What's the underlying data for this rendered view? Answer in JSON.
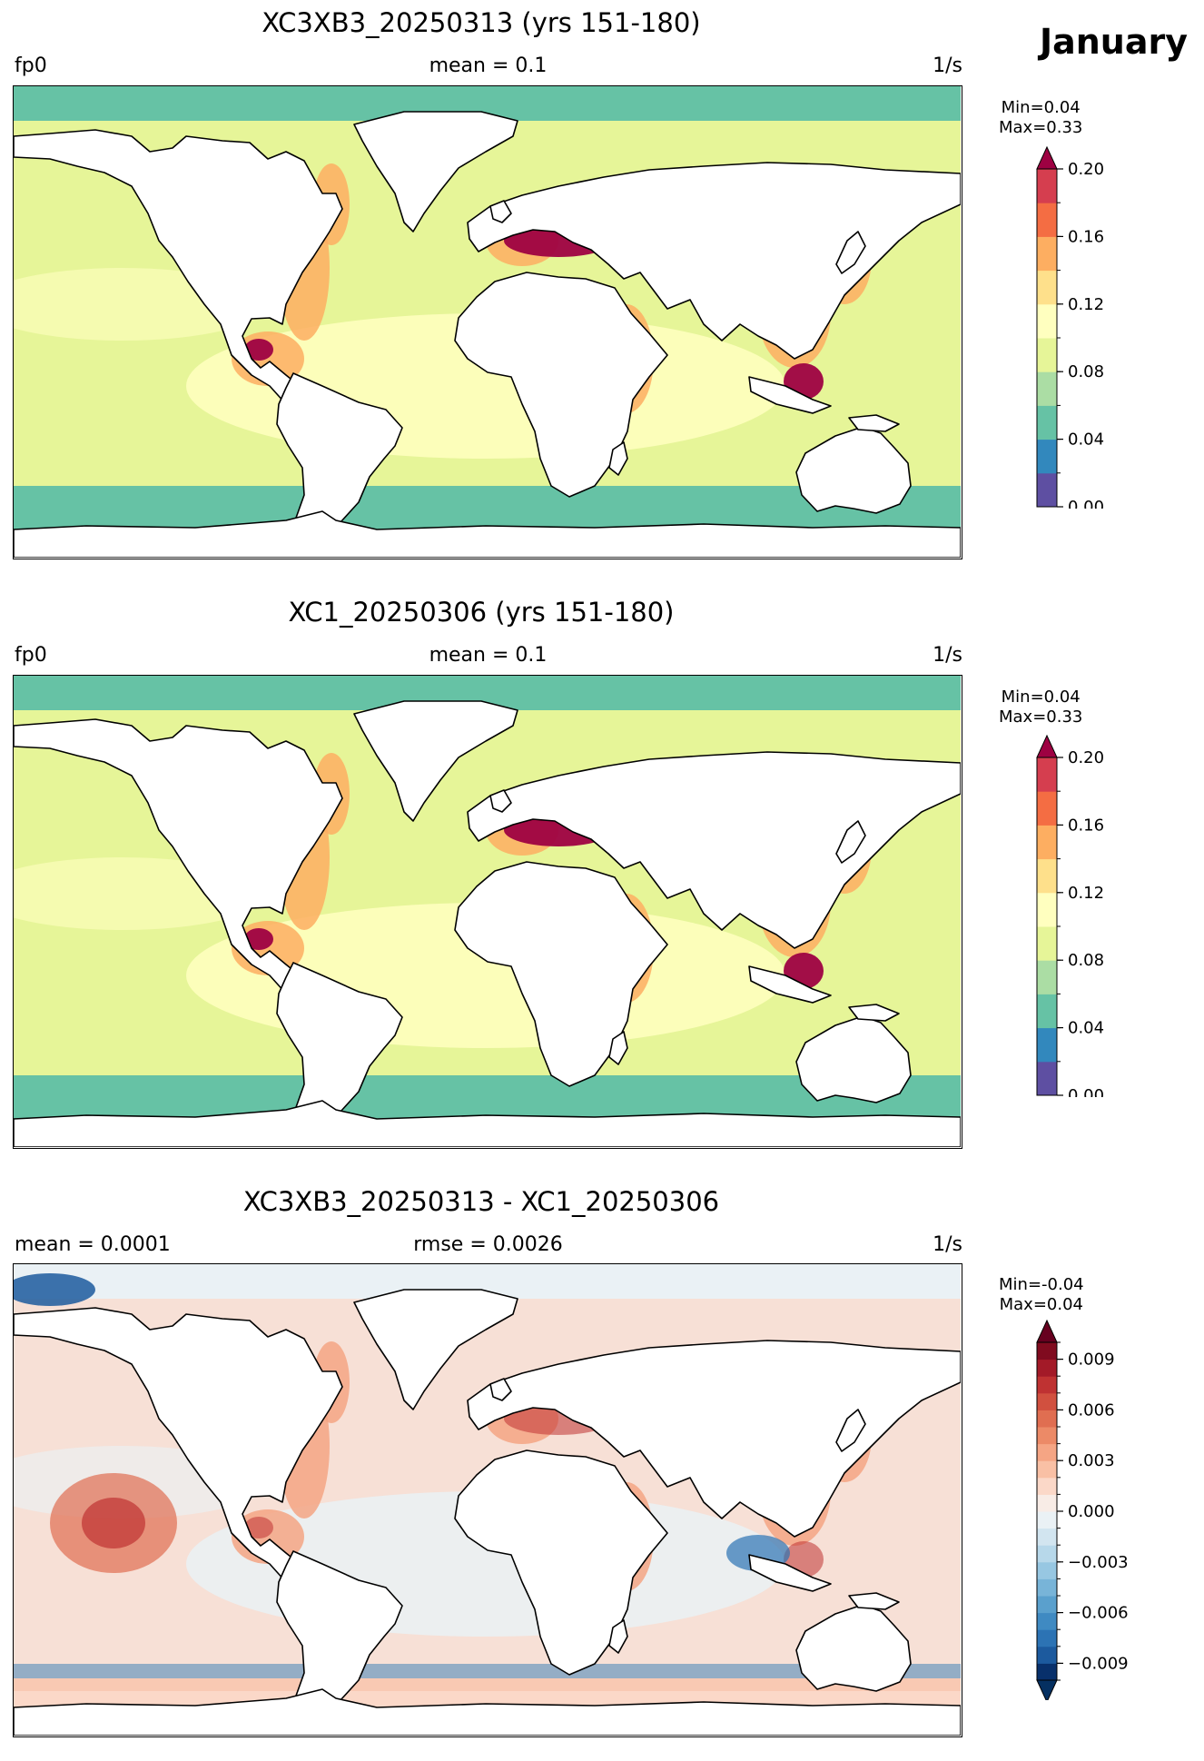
{
  "month": "January",
  "panels": [
    {
      "title": "XC3XB3_20250313 (yrs 151-180)",
      "left": "fp0",
      "center": "mean = 0.1",
      "right": "1/s",
      "min_label": "Min=0.04",
      "max_label": "Max=0.33",
      "colorbar": {
        "levels": [
          0.0,
          0.02,
          0.04,
          0.06,
          0.08,
          0.1,
          0.12,
          0.14,
          0.16,
          0.18,
          0.2
        ],
        "colors": [
          "#5e4fa2",
          "#3288bd",
          "#66c2a5",
          "#abdda4",
          "#e6f598",
          "#ffffbf",
          "#fee08b",
          "#fdae61",
          "#f46d43",
          "#d53e4f"
        ],
        "extend_color": "#9e0142",
        "extend": "max",
        "tick_labels": [
          "0.20",
          "0.16",
          "0.12",
          "0.08",
          "0.04",
          "0.00"
        ]
      },
      "ocean": {
        "base": "#e6f598",
        "north": "#66c2a5",
        "south": "#66c2a5",
        "tropic": "#ffffbf",
        "coast": "#fdae61",
        "hot": "#9e0142"
      }
    },
    {
      "title": "XC1_20250306 (yrs 151-180)",
      "left": "fp0",
      "center": "mean = 0.1",
      "right": "1/s",
      "min_label": "Min=0.04",
      "max_label": "Max=0.33",
      "colorbar": {
        "levels": [
          0.0,
          0.02,
          0.04,
          0.06,
          0.08,
          0.1,
          0.12,
          0.14,
          0.16,
          0.18,
          0.2
        ],
        "colors": [
          "#5e4fa2",
          "#3288bd",
          "#66c2a5",
          "#abdda4",
          "#e6f598",
          "#ffffbf",
          "#fee08b",
          "#fdae61",
          "#f46d43",
          "#d53e4f"
        ],
        "extend_color": "#9e0142",
        "extend": "max",
        "tick_labels": [
          "0.20",
          "0.16",
          "0.12",
          "0.08",
          "0.04",
          "0.00"
        ]
      },
      "ocean": {
        "base": "#e6f598",
        "north": "#66c2a5",
        "south": "#66c2a5",
        "tropic": "#ffffbf",
        "coast": "#fdae61",
        "hot": "#9e0142"
      }
    },
    {
      "title": "XC3XB3_20250313 - XC1_20250306",
      "left": "mean = 0.0001",
      "center": "rmse = 0.0026",
      "right": "1/s",
      "min_label": "Min=-0.04",
      "max_label": "Max=0.04",
      "colorbar": {
        "levels": [
          -0.01,
          -0.009,
          -0.008,
          -0.007,
          -0.006,
          -0.005,
          -0.004,
          -0.003,
          -0.002,
          -0.001,
          0.0,
          0.001,
          0.002,
          0.003,
          0.004,
          0.005,
          0.006,
          0.007,
          0.008,
          0.009,
          0.01
        ],
        "colors": [
          "#08306b",
          "#1c5a9e",
          "#2c73b4",
          "#3f8ac2",
          "#5aa0cd",
          "#78b4d8",
          "#97c7e2",
          "#b7d8ea",
          "#d2e5f0",
          "#eaf1f5",
          "#f8ece6",
          "#fbd8c8",
          "#f9c0a5",
          "#f5a584",
          "#ec8a67",
          "#e06e51",
          "#d1503f",
          "#bf3232",
          "#a31a28",
          "#800b1f"
        ],
        "extend_color_low": "#053061",
        "extend_color": "#67001f",
        "extend": "both",
        "tick_labels": [
          "0.009",
          "0.006",
          "0.003",
          "0.000",
          "−0.003",
          "−0.006",
          "−0.009"
        ]
      },
      "ocean": {
        "base": "#f7e0d6",
        "north": "#eaf1f5",
        "south": "#fbd8c8",
        "tropic": "#eaf1f5",
        "coast": "#f5a584",
        "hot": "#bf3232"
      }
    }
  ],
  "chart_data": [
    {
      "type": "heatmap",
      "title": "XC3XB3_20250313 (yrs 151-180)",
      "variable": "fp0",
      "units": "1/s",
      "mean": 0.1,
      "min": 0.04,
      "max": 0.33,
      "color_range": [
        0.0,
        0.2
      ]
    },
    {
      "type": "heatmap",
      "title": "XC1_20250306 (yrs 151-180)",
      "variable": "fp0",
      "units": "1/s",
      "mean": 0.1,
      "min": 0.04,
      "max": 0.33,
      "color_range": [
        0.0,
        0.2
      ]
    },
    {
      "type": "heatmap",
      "title": "XC3XB3_20250313 - XC1_20250306",
      "units": "1/s",
      "mean": 0.0001,
      "rmse": 0.0026,
      "min": -0.04,
      "max": 0.04,
      "color_range": [
        -0.01,
        0.01
      ]
    }
  ]
}
